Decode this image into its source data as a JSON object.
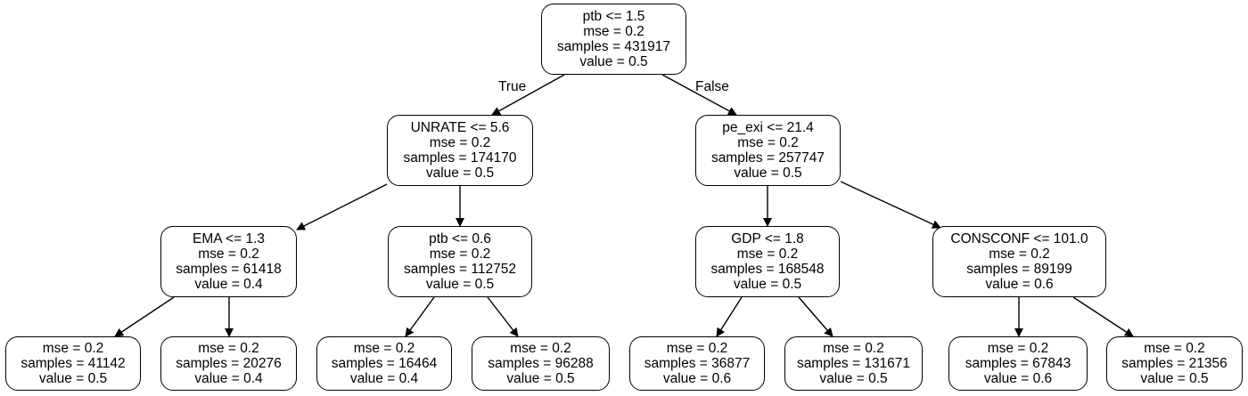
{
  "tree": {
    "nodes": [
      {
        "id": "root",
        "lines": [
          "ptb <= 1.5",
          "mse = 0.2",
          "samples = 431917",
          "value = 0.5"
        ]
      },
      {
        "id": "l",
        "lines": [
          "UNRATE <= 5.6",
          "mse = 0.2",
          "samples = 174170",
          "value = 0.5"
        ]
      },
      {
        "id": "r",
        "lines": [
          "pe_exi <= 21.4",
          "mse = 0.2",
          "samples = 257747",
          "value = 0.5"
        ]
      },
      {
        "id": "ll",
        "lines": [
          "EMA <= 1.3",
          "mse = 0.2",
          "samples = 61418",
          "value = 0.4"
        ]
      },
      {
        "id": "lr",
        "lines": [
          "ptb <= 0.6",
          "mse = 0.2",
          "samples = 112752",
          "value = 0.5"
        ]
      },
      {
        "id": "rl",
        "lines": [
          "GDP <= 1.8",
          "mse = 0.2",
          "samples = 168548",
          "value = 0.5"
        ]
      },
      {
        "id": "rr",
        "lines": [
          "CONSCONF <= 101.0",
          "mse = 0.2",
          "samples = 89199",
          "value = 0.6"
        ]
      },
      {
        "id": "lll",
        "lines": [
          "mse = 0.2",
          "samples = 41142",
          "value = 0.5"
        ]
      },
      {
        "id": "llr",
        "lines": [
          "mse = 0.2",
          "samples = 20276",
          "value = 0.4"
        ]
      },
      {
        "id": "lrl",
        "lines": [
          "mse = 0.2",
          "samples = 16464",
          "value = 0.4"
        ]
      },
      {
        "id": "lrr",
        "lines": [
          "mse = 0.2",
          "samples = 96288",
          "value = 0.5"
        ]
      },
      {
        "id": "rll",
        "lines": [
          "mse = 0.2",
          "samples = 36877",
          "value = 0.6"
        ]
      },
      {
        "id": "rlr",
        "lines": [
          "mse = 0.2",
          "samples = 131671",
          "value = 0.5"
        ]
      },
      {
        "id": "rrl",
        "lines": [
          "mse = 0.2",
          "samples = 67843",
          "value = 0.6"
        ]
      },
      {
        "id": "rrr",
        "lines": [
          "mse = 0.2",
          "samples = 21356",
          "value = 0.5"
        ]
      }
    ],
    "edges": [
      {
        "from": "root",
        "to": "l",
        "label": "True"
      },
      {
        "from": "root",
        "to": "r",
        "label": "False"
      },
      {
        "from": "l",
        "to": "ll"
      },
      {
        "from": "l",
        "to": "lr"
      },
      {
        "from": "r",
        "to": "rl"
      },
      {
        "from": "r",
        "to": "rr"
      },
      {
        "from": "ll",
        "to": "lll"
      },
      {
        "from": "ll",
        "to": "llr"
      },
      {
        "from": "lr",
        "to": "lrl"
      },
      {
        "from": "lr",
        "to": "lrr"
      },
      {
        "from": "rl",
        "to": "rll"
      },
      {
        "from": "rl",
        "to": "rlr"
      },
      {
        "from": "rr",
        "to": "rrl"
      },
      {
        "from": "rr",
        "to": "rrr"
      }
    ]
  }
}
